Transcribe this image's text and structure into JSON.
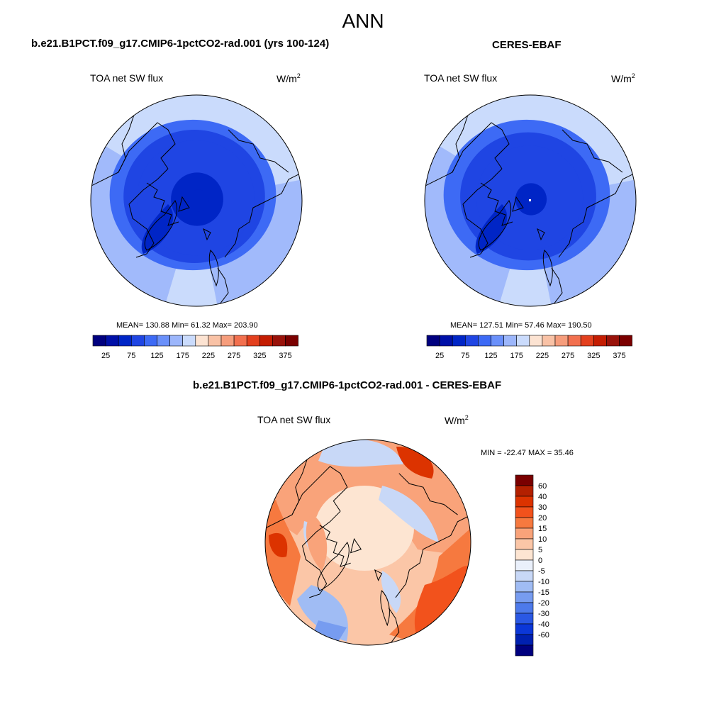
{
  "page": {
    "title": "ANN",
    "diff_title": "b.e21.B1PCT.f09_g17.CMIP6-1pctCO2-rad.001 - CERES-EBAF"
  },
  "colors": {
    "coast": "#000000",
    "outline": "#000000",
    "missing_dot": "#ffffff",
    "abs_palette": [
      "#00007f",
      "#0010a8",
      "#0025c6",
      "#1f45e3",
      "#3d6af5",
      "#6a90fa",
      "#9cb6fb",
      "#cadbfc",
      "#fce3d2",
      "#f9c2a6",
      "#f69d7c",
      "#f2704f",
      "#e3401e",
      "#c41d02",
      "#99120a",
      "#7a0000"
    ],
    "diff_palette": [
      "#7a0000",
      "#b32000",
      "#dc3300",
      "#f2521c",
      "#f6793f",
      "#f9a37a",
      "#fbc6a7",
      "#fde5d2",
      "#eaf0fb",
      "#c8d8f7",
      "#a0bcf4",
      "#779cf0",
      "#4d7aeb",
      "#2a58e4",
      "#0b37d8",
      "#0020b0",
      "#00007f"
    ]
  },
  "chart_data": [
    {
      "type": "heatmap",
      "projection": "north-polar-stereographic",
      "title": "b.e21.B1PCT.f09_g17.CMIP6-1pctCO2-rad.001 (yrs 100-124)",
      "variable": "TOA net SW flux",
      "units_base": "W/m",
      "units_exp": "2",
      "stats_text": "MEAN= 130.88  Min=  61.32  Max= 203.90",
      "mean": 130.88,
      "min": 61.32,
      "max": 203.9,
      "colorbar": {
        "levels": [
          25,
          50,
          75,
          100,
          125,
          150,
          175,
          200,
          225,
          250,
          275,
          300,
          325,
          350,
          375
        ],
        "tick_labels": [
          "25",
          "75",
          "125",
          "175",
          "225",
          "275",
          "325",
          "375"
        ]
      },
      "zones": [
        {
          "lat_edge": 60,
          "value": 100
        },
        {
          "lat_edge": 64,
          "value": 90
        },
        {
          "lat_edge": 68,
          "value": 80
        },
        {
          "lat_edge": 80,
          "value": 70
        },
        {
          "lat_edge": 90,
          "value": 62
        }
      ],
      "outer_value": 185,
      "warm_sector_value": 160
    },
    {
      "type": "heatmap",
      "projection": "north-polar-stereographic",
      "title": "CERES-EBAF",
      "variable": "TOA net SW flux",
      "units_base": "W/m",
      "units_exp": "2",
      "stats_text": "MEAN= 127.51  Min=  57.46  Max= 190.50",
      "mean": 127.51,
      "min": 57.46,
      "max": 190.5,
      "colorbar": {
        "levels": [
          25,
          50,
          75,
          100,
          125,
          150,
          175,
          200,
          225,
          250,
          275,
          300,
          325,
          350,
          375
        ],
        "tick_labels": [
          "25",
          "75",
          "125",
          "175",
          "225",
          "275",
          "325",
          "375"
        ]
      },
      "zones": [
        {
          "lat_edge": 60,
          "value": 105
        },
        {
          "lat_edge": 65,
          "value": 92
        },
        {
          "lat_edge": 70,
          "value": 80
        },
        {
          "lat_edge": 84,
          "value": 68
        },
        {
          "lat_edge": 90,
          "value": 60
        }
      ],
      "outer_value": 180,
      "warm_sector_value": 155
    },
    {
      "type": "heatmap",
      "projection": "north-polar-stereographic",
      "title": "b.e21.B1PCT.f09_g17.CMIP6-1pctCO2-rad.001 - CERES-EBAF",
      "variable": "TOA net SW flux",
      "units_base": "W/m",
      "units_exp": "2",
      "stats_text": "MIN = -22.47 MAX =  35.46",
      "min": -22.47,
      "max": 35.46,
      "colorbar": {
        "levels": [
          60,
          40,
          30,
          20,
          15,
          10,
          5,
          0,
          -5,
          -10,
          -15,
          -20,
          -30,
          -40,
          -60
        ],
        "tick_labels": [
          "60",
          "40",
          "30",
          "20",
          "15",
          "10",
          "5",
          "0",
          "-5",
          "-10",
          "-15",
          "-20",
          "-30",
          "-40",
          "-60"
        ]
      }
    }
  ]
}
